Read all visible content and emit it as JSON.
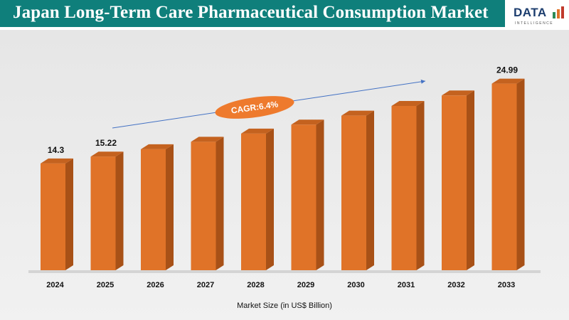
{
  "header": {
    "title": "Japan Long-Term Care Pharmaceutical Consumption Market",
    "logo_text": "DATA",
    "logo_sub": "INTELLIGENCE"
  },
  "colors": {
    "header_bg": "#0f7f7b",
    "bar_front": "#e07328",
    "bar_side": "#a85117",
    "bar_top": "#c4621f",
    "cagr_bubble": "#ee7a2d",
    "trend_arrow": "#4472c4"
  },
  "chart_data": {
    "type": "bar",
    "title": "Japan Long-Term Care Pharmaceutical Consumption Market",
    "xlabel": "Market Size (in US$ Billion)",
    "ylabel": "",
    "categories": [
      "2024",
      "2025",
      "2026",
      "2027",
      "2028",
      "2029",
      "2030",
      "2031",
      "2032",
      "2033"
    ],
    "values": [
      14.3,
      15.22,
      16.2,
      17.2,
      18.3,
      19.5,
      20.7,
      22.0,
      23.4,
      24.99
    ],
    "data_labels": [
      {
        "index": 0,
        "text": "14.3"
      },
      {
        "index": 1,
        "text": "15.22"
      },
      {
        "index": 9,
        "text": "24.99"
      }
    ],
    "annotation": "CAGR:6.4%",
    "ylim": [
      0,
      26
    ],
    "grid": false,
    "legend": "none"
  }
}
